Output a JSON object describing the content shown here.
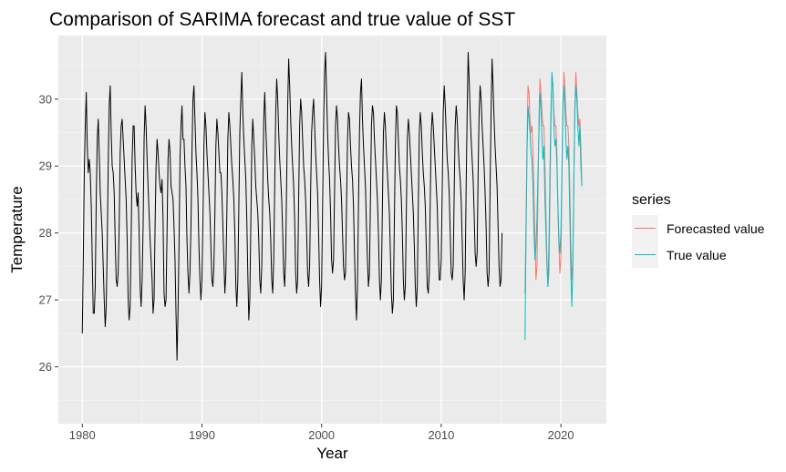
{
  "chart_data": {
    "type": "line",
    "title": "Comparison of SARIMA forecast and true value of SST",
    "xlabel": "Year",
    "ylabel": "Temperature",
    "xlim": [
      1978.0,
      2023.8
    ],
    "ylim": [
      25.15,
      30.95
    ],
    "x_ticks": [
      1980,
      1990,
      2000,
      2010,
      2020
    ],
    "y_ticks": [
      26,
      27,
      28,
      29,
      30
    ],
    "grid": true,
    "legend": {
      "title": "series",
      "position": "right",
      "entries": [
        {
          "label": "Forecasted value",
          "color": "#F8766D"
        },
        {
          "label": "True value",
          "color": "#00BFC4"
        }
      ]
    },
    "history": {
      "color": "#000000",
      "start": 1980.0,
      "step": 0.08333,
      "values": [
        26.5,
        27.6,
        28.9,
        29.6,
        30.1,
        29.3,
        28.9,
        29.1,
        28.9,
        28.4,
        27.6,
        26.8,
        26.8,
        27.2,
        28.5,
        29.4,
        29.7,
        29.2,
        28.6,
        28.3,
        28.0,
        27.5,
        27.0,
        26.6,
        26.9,
        27.8,
        29.0,
        29.9,
        30.2,
        29.5,
        29.0,
        28.9,
        28.6,
        27.9,
        27.3,
        27.2,
        27.4,
        28.1,
        29.2,
        29.6,
        29.7,
        29.4,
        29.1,
        28.8,
        28.5,
        27.9,
        27.0,
        26.7,
        26.9,
        27.9,
        29.1,
        29.6,
        29.6,
        29.0,
        28.6,
        28.4,
        28.6,
        28.0,
        27.2,
        26.9,
        27.3,
        28.1,
        29.4,
        29.9,
        29.6,
        29.1,
        28.7,
        28.3,
        27.9,
        27.6,
        27.3,
        26.8,
        27.0,
        28.1,
        29.0,
        29.4,
        29.2,
        28.9,
        28.7,
        28.6,
        28.8,
        28.2,
        27.1,
        26.9,
        27.0,
        28.0,
        29.1,
        29.4,
        29.2,
        28.7,
        28.6,
        28.5,
        28.1,
        27.6,
        26.8,
        26.1,
        26.8,
        27.8,
        29.1,
        29.6,
        29.9,
        29.4,
        29.4,
        29.0,
        28.7,
        27.9,
        27.4,
        27.1,
        27.4,
        28.1,
        29.2,
        30.0,
        30.2,
        29.7,
        29.2,
        28.9,
        28.5,
        27.8,
        27.3,
        27.0,
        27.3,
        28.2,
        29.3,
        29.8,
        29.6,
        29.2,
        28.9,
        28.6,
        28.3,
        27.8,
        27.3,
        27.2,
        27.5,
        28.3,
        29.3,
        29.7,
        29.5,
        29.2,
        28.9,
        28.9,
        28.6,
        28.1,
        27.6,
        27.1,
        27.4,
        28.3,
        29.4,
        29.8,
        29.6,
        29.3,
        29.0,
        28.8,
        28.5,
        28.0,
        27.2,
        26.9,
        27.3,
        28.4,
        29.5,
        30.0,
        30.4,
        29.8,
        29.4,
        29.1,
        28.8,
        28.2,
        27.4,
        26.7,
        27.0,
        28.1,
        29.3,
        29.7,
        29.4,
        29.1,
        28.7,
        28.5,
        28.3,
        27.9,
        27.3,
        27.1,
        27.5,
        28.6,
        29.7,
        30.1,
        29.6,
        29.2,
        28.8,
        28.5,
        28.3,
        27.9,
        27.3,
        27.1,
        27.6,
        28.7,
        29.8,
        30.3,
        30.0,
        29.5,
        29.1,
        28.8,
        28.5,
        28.0,
        27.4,
        27.2,
        27.7,
        28.8,
        29.9,
        30.6,
        30.2,
        29.7,
        29.3,
        29.0,
        28.7,
        28.2,
        27.4,
        27.1,
        27.3,
        28.5,
        29.6,
        30.0,
        29.8,
        29.4,
        29.0,
        28.8,
        28.5,
        28.0,
        27.4,
        27.2,
        27.5,
        28.6,
        29.5,
        29.8,
        30.0,
        29.6,
        29.2,
        28.9,
        28.6,
        28.0,
        27.3,
        26.9,
        27.2,
        28.4,
        29.6,
        30.4,
        30.7,
        30.1,
        29.5,
        29.1,
        28.8,
        28.3,
        27.6,
        27.4,
        27.6,
        28.6,
        29.6,
        29.9,
        29.7,
        29.3,
        29.0,
        28.8,
        28.5,
        28.0,
        27.5,
        27.3,
        27.4,
        28.4,
        29.4,
        29.8,
        29.7,
        29.3,
        29.0,
        28.8,
        28.4,
        27.7,
        27.1,
        26.7,
        27.2,
        28.4,
        29.5,
        30.1,
        30.3,
        29.7,
        29.3,
        29.0,
        28.7,
        28.1,
        27.6,
        27.2,
        27.4,
        28.5,
        29.6,
        29.9,
        29.8,
        29.4,
        29.1,
        28.8,
        28.5,
        28.0,
        27.3,
        27.0,
        27.3,
        28.4,
        29.5,
        29.8,
        29.6,
        29.2,
        28.9,
        28.6,
        28.3,
        27.7,
        27.1,
        26.8,
        27.0,
        28.2,
        29.3,
        29.9,
        29.8,
        29.4,
        29.0,
        28.8,
        28.5,
        28.0,
        27.3,
        27.0,
        27.2,
        28.3,
        29.4,
        29.7,
        29.5,
        29.2,
        28.9,
        28.6,
        28.3,
        27.8,
        27.2,
        26.9,
        27.2,
        28.4,
        29.5,
        29.8,
        29.6,
        29.2,
        28.9,
        28.7,
        28.4,
        27.8,
        27.2,
        27.1,
        27.4,
        28.5,
        29.5,
        29.8,
        29.6,
        29.3,
        29.0,
        28.7,
        28.4,
        27.8,
        27.3,
        27.3,
        27.6,
        28.7,
        29.8,
        30.2,
        29.9,
        29.5,
        29.1,
        28.9,
        28.6,
        28.0,
        27.4,
        27.3,
        27.5,
        28.6,
        29.6,
        29.9,
        29.7,
        29.3,
        29.0,
        28.8,
        28.5,
        27.9,
        27.3,
        27.0,
        27.4,
        28.7,
        29.8,
        30.7,
        30.3,
        29.8,
        29.4,
        29.1,
        28.8,
        28.3,
        27.7,
        27.5,
        27.7,
        28.9,
        29.8,
        30.2,
        30.0,
        29.6,
        29.3,
        29.0,
        28.6,
        28.1,
        27.4,
        27.2,
        27.4,
        28.7,
        29.8,
        30.6,
        30.2,
        29.7,
        29.3,
        29.0,
        28.7,
        28.1,
        27.5,
        27.2,
        27.3,
        28.0
      ]
    },
    "forecast": {
      "name": "Forecasted value",
      "color": "#F8766D",
      "start": 2017.0,
      "step": 0.08333,
      "values": [
        27.1,
        28.1,
        29.3,
        30.2,
        30.1,
        29.7,
        29.5,
        29.6,
        29.2,
        28.6,
        27.9,
        27.3,
        27.5,
        28.6,
        29.7,
        30.3,
        30.1,
        29.8,
        29.6,
        29.6,
        29.0,
        28.3,
        27.6,
        27.2,
        27.4,
        28.5,
        29.6,
        30.3,
        30.2,
        29.8,
        29.6,
        29.6,
        29.2,
        28.4,
        27.8,
        27.4,
        27.6,
        28.7,
        29.8,
        30.4,
        30.2,
        29.8,
        29.6,
        29.6,
        29.3,
        28.6,
        27.8,
        27.3,
        27.6,
        28.8,
        29.9,
        30.4,
        30.1,
        29.8,
        29.6,
        29.7,
        29.3,
        28.7
      ]
    },
    "true_value": {
      "name": "True value",
      "color": "#00BFC4",
      "start": 2017.0,
      "step": 0.08333,
      "values": [
        26.4,
        27.9,
        29.2,
        29.9,
        29.7,
        29.5,
        29.2,
        29.1,
        28.7,
        28.0,
        27.6,
        27.8,
        28.2,
        28.9,
        29.5,
        30.1,
        29.9,
        29.4,
        29.1,
        29.3,
        28.5,
        28.0,
        27.5,
        27.2,
        27.8,
        28.9,
        29.8,
        30.4,
        30.2,
        29.6,
        29.3,
        29.4,
        29.0,
        28.4,
        27.9,
        27.7,
        28.0,
        29.0,
        29.9,
        30.2,
        29.9,
        29.4,
        29.1,
        29.3,
        29.0,
        28.2,
        27.4,
        26.9,
        27.5,
        28.8,
        29.8,
        30.2,
        30.0,
        29.6,
        29.3,
        29.6,
        29.0,
        28.7
      ]
    }
  }
}
